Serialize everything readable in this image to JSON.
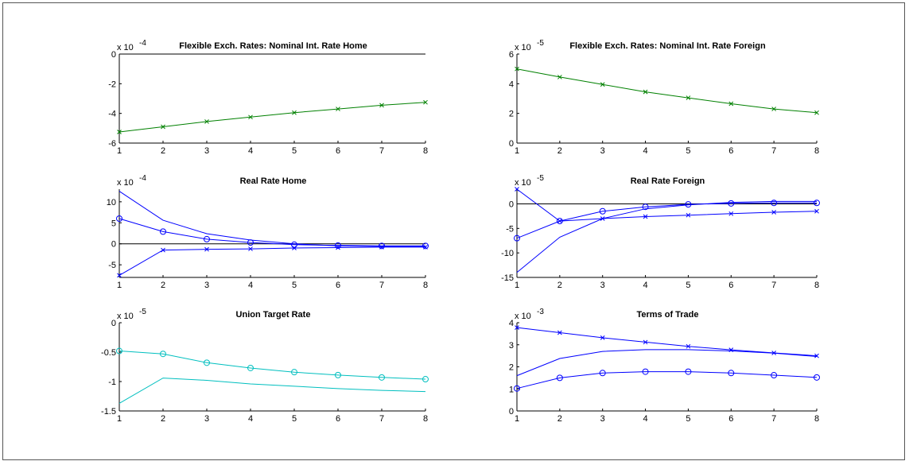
{
  "chart_data": [
    {
      "type": "line",
      "title": "Flexible Exch. Rates: Nominal Int. Rate Home",
      "scale_base": "x 10",
      "scale_exp": "-4",
      "x": [
        1,
        2,
        3,
        4,
        5,
        6,
        7,
        8
      ],
      "xlim": [
        1,
        8
      ],
      "ylim": [
        -6,
        0
      ],
      "yticks": [
        -6,
        -4,
        -2,
        0
      ],
      "yticklabels": [
        "-6",
        "-4",
        "-2",
        "0"
      ],
      "zero_line": true,
      "series": [
        {
          "color": "#008000",
          "marker": "x",
          "values": [
            -5.25,
            -4.9,
            -4.55,
            -4.25,
            -3.95,
            -3.7,
            -3.45,
            -3.25
          ]
        }
      ]
    },
    {
      "type": "line",
      "title": "Flexible Exch. Rates: Nominal Int. Rate Foreign",
      "scale_base": "x 10",
      "scale_exp": "-5",
      "x": [
        1,
        2,
        3,
        4,
        5,
        6,
        7,
        8
      ],
      "xlim": [
        1,
        8
      ],
      "ylim": [
        0,
        6
      ],
      "yticks": [
        0,
        2,
        4,
        6
      ],
      "yticklabels": [
        "0",
        "2",
        "4",
        "6"
      ],
      "zero_line": false,
      "series": [
        {
          "color": "#008000",
          "marker": "x",
          "values": [
            5.0,
            4.45,
            3.95,
            3.45,
            3.05,
            2.65,
            2.3,
            2.05
          ]
        }
      ]
    },
    {
      "type": "line",
      "title": "Real Rate Home",
      "scale_base": "x 10",
      "scale_exp": "-4",
      "x": [
        1,
        2,
        3,
        4,
        5,
        6,
        7,
        8
      ],
      "xlim": [
        1,
        8
      ],
      "ylim": [
        -8,
        13
      ],
      "yticks": [
        -5,
        0,
        5,
        10
      ],
      "yticklabels": [
        "-5",
        "0",
        "5",
        "10"
      ],
      "zero_line": true,
      "series": [
        {
          "color": "#0000ff",
          "marker": "none",
          "values": [
            12.5,
            5.6,
            2.4,
            0.9,
            0.0,
            -0.5,
            -0.6,
            -0.6
          ]
        },
        {
          "color": "#0000ff",
          "marker": "o",
          "values": [
            6.0,
            2.9,
            1.1,
            0.3,
            -0.2,
            -0.4,
            -0.5,
            -0.5
          ]
        },
        {
          "color": "#0000ff",
          "marker": "x",
          "values": [
            -7.5,
            -1.5,
            -1.3,
            -1.2,
            -1.0,
            -0.9,
            -0.8,
            -0.8
          ]
        }
      ]
    },
    {
      "type": "line",
      "title": "Real Rate Foreign",
      "scale_base": "x 10",
      "scale_exp": "-5",
      "x": [
        1,
        2,
        3,
        4,
        5,
        6,
        7,
        8
      ],
      "xlim": [
        1,
        8
      ],
      "ylim": [
        -15,
        3
      ],
      "yticks": [
        -15,
        -10,
        -5,
        0
      ],
      "yticklabels": [
        "-15",
        "-10",
        "-5",
        "0"
      ],
      "zero_line": true,
      "series": [
        {
          "color": "#0000ff",
          "marker": "x",
          "values": [
            3.0,
            -3.5,
            -3.0,
            -2.6,
            -2.3,
            -2.0,
            -1.7,
            -1.5
          ]
        },
        {
          "color": "#0000ff",
          "marker": "o",
          "values": [
            -7.0,
            -3.5,
            -1.5,
            -0.6,
            -0.1,
            0.1,
            0.2,
            0.2
          ]
        },
        {
          "color": "#0000ff",
          "marker": "none",
          "values": [
            -14.0,
            -6.8,
            -3.0,
            -1.0,
            -0.2,
            0.3,
            0.5,
            0.5
          ]
        }
      ]
    },
    {
      "type": "line",
      "title": "Union Target Rate",
      "scale_base": "x 10",
      "scale_exp": "-5",
      "x": [
        1,
        2,
        3,
        4,
        5,
        6,
        7,
        8
      ],
      "xlim": [
        1,
        8
      ],
      "ylim": [
        -1.5,
        0
      ],
      "yticks": [
        -1.5,
        -1,
        -0.5,
        0
      ],
      "yticklabels": [
        "-1.5",
        "-1",
        "-0.5",
        "0"
      ],
      "zero_line": false,
      "series": [
        {
          "color": "#00bfbf",
          "marker": "o",
          "values": [
            -0.48,
            -0.53,
            -0.68,
            -0.77,
            -0.84,
            -0.89,
            -0.93,
            -0.96
          ]
        },
        {
          "color": "#00bfbf",
          "marker": "none",
          "values": [
            -1.37,
            -0.94,
            -0.98,
            -1.04,
            -1.08,
            -1.12,
            -1.15,
            -1.17
          ]
        }
      ]
    },
    {
      "type": "line",
      "title": "Terms of Trade",
      "scale_base": "x 10",
      "scale_exp": "-3",
      "x": [
        1,
        2,
        3,
        4,
        5,
        6,
        7,
        8
      ],
      "xlim": [
        1,
        8
      ],
      "ylim": [
        0,
        4
      ],
      "yticks": [
        0,
        1,
        2,
        3,
        4
      ],
      "yticklabels": [
        "0",
        "1",
        "2",
        "3",
        "4"
      ],
      "zero_line": false,
      "series": [
        {
          "color": "#0000ff",
          "marker": "x",
          "values": [
            3.78,
            3.55,
            3.32,
            3.12,
            2.93,
            2.77,
            2.63,
            2.5
          ]
        },
        {
          "color": "#0000ff",
          "marker": "none",
          "values": [
            1.6,
            2.38,
            2.7,
            2.78,
            2.78,
            2.72,
            2.62,
            2.47
          ]
        },
        {
          "color": "#0000ff",
          "marker": "o",
          "values": [
            1.02,
            1.5,
            1.72,
            1.78,
            1.78,
            1.72,
            1.62,
            1.52
          ]
        }
      ]
    }
  ]
}
